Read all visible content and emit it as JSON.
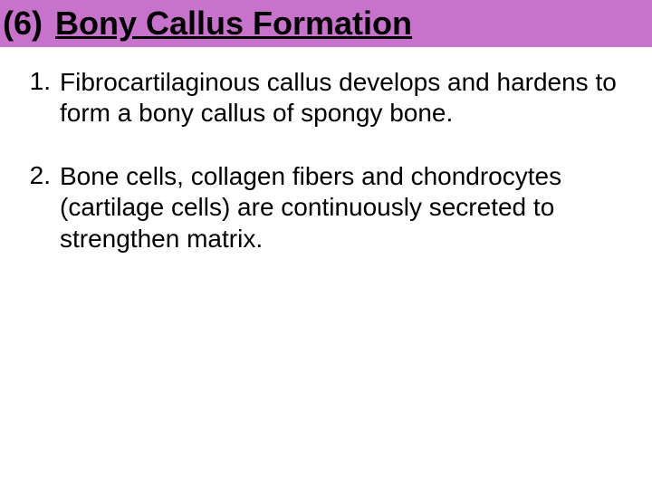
{
  "header": {
    "number": "(6)",
    "title": "Bony Callus Formation",
    "bar_color": "#c773cc",
    "title_fontsize": 36,
    "title_color": "#000000"
  },
  "items": [
    {
      "num": "1.",
      "text": "Fibrocartilaginous callus develops and hardens to form a bony callus of spongy bone."
    },
    {
      "num": "2.",
      "text": "Bone cells, collagen fibers and chondrocytes (cartilage cells) are continuously secreted to strengthen matrix."
    }
  ],
  "body": {
    "background_color": "#ffffff",
    "text_color": "#000000",
    "body_fontsize": 28
  }
}
